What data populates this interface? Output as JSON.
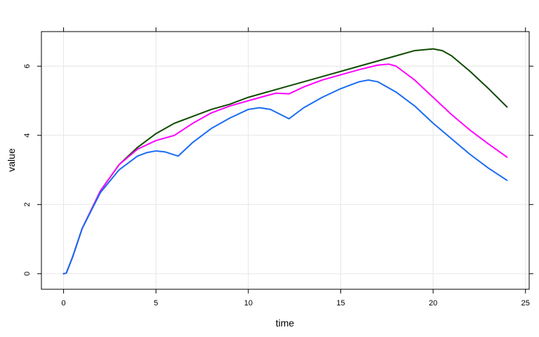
{
  "chart_data": {
    "type": "line",
    "xlabel": "time",
    "ylabel": "value",
    "xlim": [
      -1.2,
      25.2
    ],
    "ylim": [
      -0.45,
      7.0
    ],
    "x_ticks": [
      0,
      5,
      10,
      15,
      20,
      25
    ],
    "y_ticks": [
      0,
      2,
      4,
      6
    ],
    "x_tick_labels": [
      "0",
      "5",
      "10",
      "15",
      "20",
      "25"
    ],
    "y_tick_labels": [
      "0",
      "2",
      "4",
      "6"
    ],
    "grid": true,
    "legend": "none",
    "series": [
      {
        "color": "#0f4a00",
        "points": [
          [
            0,
            0
          ],
          [
            0.15,
            0.02
          ],
          [
            0.5,
            0.5
          ],
          [
            1,
            1.3
          ],
          [
            2,
            2.4
          ],
          [
            3,
            3.15
          ],
          [
            4,
            3.65
          ],
          [
            5,
            4.05
          ],
          [
            6,
            4.35
          ],
          [
            7,
            4.55
          ],
          [
            8,
            4.75
          ],
          [
            9,
            4.9
          ],
          [
            10,
            5.1
          ],
          [
            12,
            5.4
          ],
          [
            14,
            5.7
          ],
          [
            16,
            6.0
          ],
          [
            18,
            6.3
          ],
          [
            19,
            6.45
          ],
          [
            20,
            6.5
          ],
          [
            20.5,
            6.45
          ],
          [
            21,
            6.3
          ],
          [
            22,
            5.85
          ],
          [
            23,
            5.35
          ],
          [
            24,
            4.82
          ]
        ]
      },
      {
        "color": "#ff00ff",
        "points": [
          [
            0,
            0
          ],
          [
            0.15,
            0.02
          ],
          [
            0.5,
            0.5
          ],
          [
            1,
            1.3
          ],
          [
            2,
            2.4
          ],
          [
            3,
            3.15
          ],
          [
            4,
            3.6
          ],
          [
            5,
            3.85
          ],
          [
            6,
            4.0
          ],
          [
            7,
            4.35
          ],
          [
            8,
            4.65
          ],
          [
            9,
            4.85
          ],
          [
            10,
            5.0
          ],
          [
            11,
            5.15
          ],
          [
            11.5,
            5.22
          ],
          [
            12.2,
            5.2
          ],
          [
            13,
            5.4
          ],
          [
            14,
            5.6
          ],
          [
            15,
            5.75
          ],
          [
            16,
            5.9
          ],
          [
            17,
            6.03
          ],
          [
            17.6,
            6.06
          ],
          [
            18,
            6.0
          ],
          [
            19,
            5.6
          ],
          [
            20,
            5.1
          ],
          [
            21,
            4.6
          ],
          [
            22,
            4.15
          ],
          [
            23,
            3.75
          ],
          [
            24,
            3.37
          ]
        ]
      },
      {
        "color": "#1a6cf2",
        "points": [
          [
            0,
            0
          ],
          [
            0.15,
            0.02
          ],
          [
            0.5,
            0.5
          ],
          [
            1,
            1.3
          ],
          [
            2,
            2.35
          ],
          [
            3,
            3.0
          ],
          [
            4,
            3.4
          ],
          [
            4.5,
            3.5
          ],
          [
            5,
            3.55
          ],
          [
            5.5,
            3.52
          ],
          [
            6.2,
            3.4
          ],
          [
            7,
            3.8
          ],
          [
            8,
            4.2
          ],
          [
            9,
            4.5
          ],
          [
            10,
            4.75
          ],
          [
            10.6,
            4.8
          ],
          [
            11.2,
            4.75
          ],
          [
            12.2,
            4.48
          ],
          [
            13,
            4.8
          ],
          [
            14,
            5.1
          ],
          [
            15,
            5.35
          ],
          [
            16,
            5.55
          ],
          [
            16.5,
            5.6
          ],
          [
            17,
            5.55
          ],
          [
            18,
            5.25
          ],
          [
            19,
            4.85
          ],
          [
            20,
            4.35
          ],
          [
            21,
            3.9
          ],
          [
            22,
            3.45
          ],
          [
            23,
            3.05
          ],
          [
            24,
            2.7
          ]
        ]
      }
    ]
  }
}
